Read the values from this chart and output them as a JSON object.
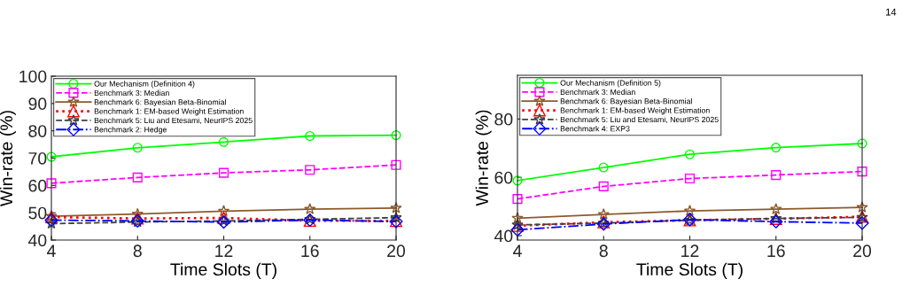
{
  "chart_data": [
    {
      "type": "line",
      "xlabel": "Time Slots (T)",
      "ylabel": "Win-rate (%)",
      "x": [
        4,
        8,
        12,
        16,
        20
      ],
      "xlim": [
        4,
        20
      ],
      "xticks": [
        4,
        8,
        12,
        16,
        20
      ],
      "ylim": [
        40,
        100
      ],
      "yticks": [
        40,
        50,
        60,
        70,
        80,
        90,
        100
      ],
      "grid": false,
      "legend": "top left",
      "series": [
        {
          "name": "Our Mechanism (Definition 4)",
          "color": "#00ff00",
          "marker": "circle",
          "line_style": "solid",
          "values": [
            70.5,
            73.8,
            75.9,
            78.1,
            78.4
          ]
        },
        {
          "name": "Benchmark 3: Median",
          "color": "#ff00ff",
          "marker": "square",
          "line_style": "dashed",
          "values": [
            60.8,
            62.9,
            64.6,
            65.7,
            67.5
          ]
        },
        {
          "name": "Benchmark 6: Bayesian Beta-Binomial",
          "color": "#8b5a2b",
          "marker": "star",
          "line_style": "solid",
          "values": [
            48.7,
            49.5,
            50.6,
            51.3,
            51.7
          ]
        },
        {
          "name": "Benchmark 1: EM-based Weight Estimation",
          "color": "#ff0000",
          "marker": "triangle",
          "line_style": "dotted",
          "values": [
            48.4,
            47.9,
            48.1,
            47.1,
            47.0
          ]
        },
        {
          "name": "Benchmark 5: Liu and Etesami, NeurIPS 2025",
          "color": "#404040",
          "marker": "star",
          "line_style": "dashed",
          "values": [
            46.0,
            46.6,
            47.0,
            47.6,
            48.2
          ]
        },
        {
          "name": "Benchmark 2: Hedge",
          "color": "#0000ff",
          "marker": "diamond",
          "line_style": "dashdot",
          "values": [
            47.3,
            47.0,
            46.6,
            47.3,
            46.8
          ]
        }
      ]
    },
    {
      "type": "line",
      "xlabel": "Time Slots (T)",
      "ylabel": "Win-rate (%)",
      "x": [
        4,
        8,
        12,
        16,
        20
      ],
      "xlim": [
        4,
        20
      ],
      "xticks": [
        4,
        8,
        12,
        16,
        20
      ],
      "ylim": [
        38.5,
        95
      ],
      "yticks": [
        40,
        60,
        80
      ],
      "grid": false,
      "legend": "top left",
      "annotations": [
        "14"
      ],
      "series": [
        {
          "name": "Our Mechanism (Definition 5)",
          "color": "#00ff00",
          "marker": "circle",
          "line_style": "solid",
          "values": [
            58.9,
            63.4,
            67.9,
            70.2,
            71.6
          ]
        },
        {
          "name": "Benchmark 3: Median",
          "color": "#ff00ff",
          "marker": "square",
          "line_style": "dashed",
          "values": [
            52.6,
            56.9,
            59.6,
            60.8,
            62.0
          ]
        },
        {
          "name": "Benchmark 6: Bayesian Beta-Binomial",
          "color": "#8b5a2b",
          "marker": "star",
          "line_style": "solid",
          "values": [
            46.0,
            47.3,
            48.5,
            49.1,
            49.7
          ]
        },
        {
          "name": "Benchmark 1: EM-based Weight Estimation",
          "color": "#ff0000",
          "marker": "triangle",
          "line_style": "dotted",
          "values": [
            43.4,
            44.6,
            45.3,
            45.8,
            46.5
          ]
        },
        {
          "name": "Benchmark 5: Liu and Etesami, NeurIPS 2025",
          "color": "#404040",
          "marker": "star",
          "line_style": "dashed",
          "values": [
            43.7,
            44.3,
            45.3,
            45.9,
            46.3
          ]
        },
        {
          "name": "Benchmark 4: EXP3",
          "color": "#0000ff",
          "marker": "diamond",
          "line_style": "dashdot",
          "values": [
            42.0,
            44.0,
            45.5,
            44.8,
            44.3
          ]
        }
      ]
    }
  ]
}
